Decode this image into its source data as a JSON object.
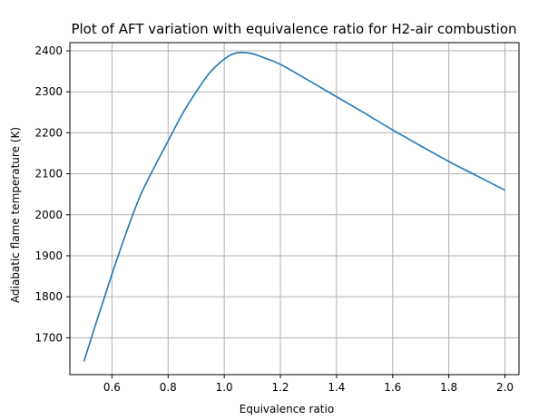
{
  "chart_data": {
    "type": "line",
    "title": "Plot of AFT variation with equivalence ratio for H2-air combustion",
    "xlabel": "Equivalence ratio",
    "ylabel": "Adiabatic flame temperature (K)",
    "xlim": [
      0.45,
      2.05
    ],
    "ylim": [
      1610,
      2420
    ],
    "x_ticks": [
      0.6,
      0.8,
      1.0,
      1.2,
      1.4,
      1.6,
      1.8,
      2.0
    ],
    "x_tick_labels": [
      "0.6",
      "0.8",
      "1.0",
      "1.2",
      "1.4",
      "1.6",
      "1.8",
      "2.0"
    ],
    "y_ticks": [
      1700,
      1800,
      1900,
      2000,
      2100,
      2200,
      2300,
      2400
    ],
    "y_tick_labels": [
      "1700",
      "1800",
      "1900",
      "2000",
      "2100",
      "2200",
      "2300",
      "2400"
    ],
    "grid": true,
    "colors": {
      "line": "#1f77b4",
      "grid": "#b0b0b0",
      "axes": "#000000"
    },
    "series": [
      {
        "x": [
          0.5,
          0.55,
          0.6,
          0.65,
          0.7,
          0.75,
          0.8,
          0.85,
          0.9,
          0.95,
          1.0,
          1.03,
          1.06,
          1.1,
          1.15,
          1.2,
          1.3,
          1.4,
          1.5,
          1.6,
          1.7,
          1.8,
          1.9,
          2.0
        ],
        "values": [
          1642,
          1750,
          1855,
          1955,
          2045,
          2115,
          2180,
          2245,
          2300,
          2348,
          2380,
          2392,
          2396,
          2393,
          2381,
          2367,
          2328,
          2288,
          2248,
          2207,
          2168,
          2130,
          2095,
          2060
        ]
      }
    ]
  }
}
